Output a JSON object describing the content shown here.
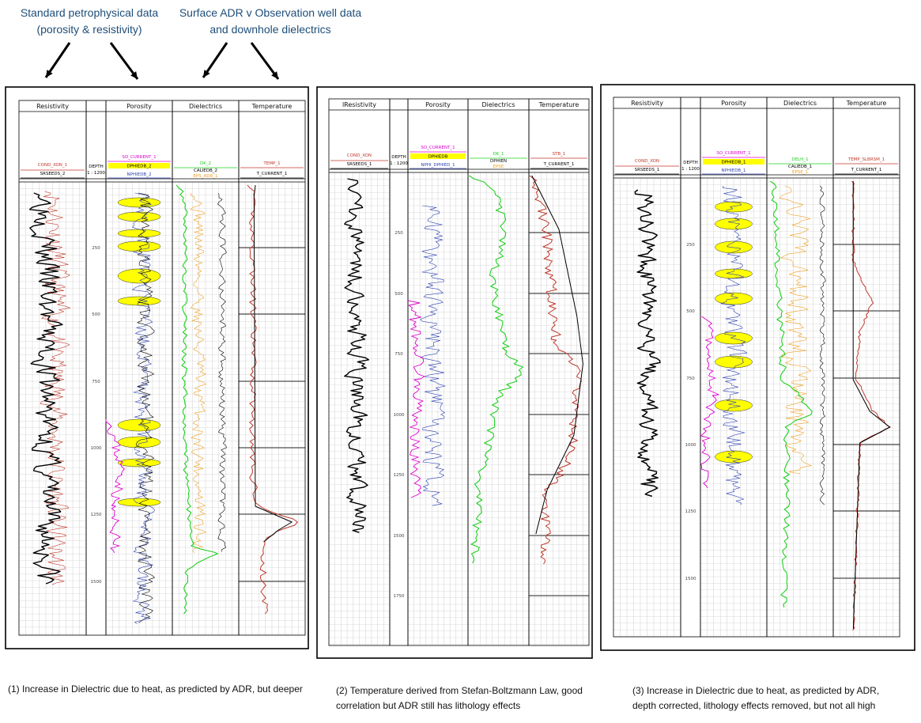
{
  "annotations": {
    "left": [
      "Standard petrophysical data",
      "(porosity & resistivity)"
    ],
    "right": [
      "Surface ADR v Observation well data",
      "and downhole dielectrics"
    ]
  },
  "colors": {
    "black": "#000000",
    "red": "#c0392b",
    "blue": "#2b3fb0",
    "magenta": "#e000d0",
    "green": "#20d020",
    "orange": "#f0a020",
    "yellow": "#ffff00",
    "grid": "#cfcfcf"
  },
  "panels": [
    {
      "id": "panel1",
      "track_titles": [
        "Resistivity",
        "",
        "Porosity",
        "Dielectrics",
        "Temperature"
      ],
      "mnemonics": {
        "res": [
          "COND_XON_1",
          "SRSEEDS_2"
        ],
        "depth": [
          "DEPTH",
          "1 : 1200"
        ],
        "por": [
          "SO_CURRENT_1",
          "DPHIEDB_2",
          "NPHIEDB_2"
        ],
        "diel": [
          "DK_2",
          "CALIEDB_2",
          "EPS_ADR_1"
        ],
        "temp": [
          "TEMP_1",
          "T_CURRENT_1"
        ]
      },
      "depth_ticks": [
        "250",
        "500",
        "750",
        "1000",
        "1250",
        "1500"
      ],
      "caption": "(1) Increase in Dielectric due to heat, as predicted by ADR, but deeper"
    },
    {
      "id": "panel2",
      "track_titles": [
        "lResistivity",
        "",
        "Porosity",
        "Dielectrics",
        "Temperature"
      ],
      "mnemonics": {
        "res": [
          "COND_XON",
          "SRSEEDS_1"
        ],
        "depth": [
          "DEPTH",
          "1 : 1200"
        ],
        "por": [
          "SO_CURRENT_1",
          "DPHIEDB",
          "NPHI_DPHIED_1"
        ],
        "diel": [
          "DK_1",
          "DPHIEN",
          "EPSE"
        ],
        "temp": [
          "STB_1",
          "T_CURRENT_1"
        ]
      },
      "depth_ticks": [
        "250",
        "500",
        "750",
        "1000",
        "1250",
        "1500",
        "1750"
      ],
      "caption": "(2) Temperature derived from Stefan-Boltzmann Law, good correlation but ADR still has lithology effects"
    },
    {
      "id": "panel3",
      "track_titles": [
        "Resistivity",
        "",
        "Porosity",
        "Dielectrics",
        "Temperature"
      ],
      "mnemonics": {
        "res": [
          "COND_XON",
          "SRSEEDS_1"
        ],
        "depth": [
          "DEPTH",
          "1 : 1200"
        ],
        "por": [
          "SO_CURRENT_1",
          "DPHIEDB_1",
          "NPHIEDB_1"
        ],
        "diel": [
          "DELH_1",
          "CALIEDB_1",
          "EPSE_1"
        ],
        "temp": [
          "TEMP_SLBRSM_1",
          "T_CURRENT_1"
        ]
      },
      "depth_ticks": [
        "250",
        "500",
        "750",
        "1000",
        "1250",
        "1500"
      ],
      "caption": "(3) Increase in Dielectric due to heat, as predicted by ADR, depth corrected, lithology effects removed, but not all high"
    }
  ]
}
